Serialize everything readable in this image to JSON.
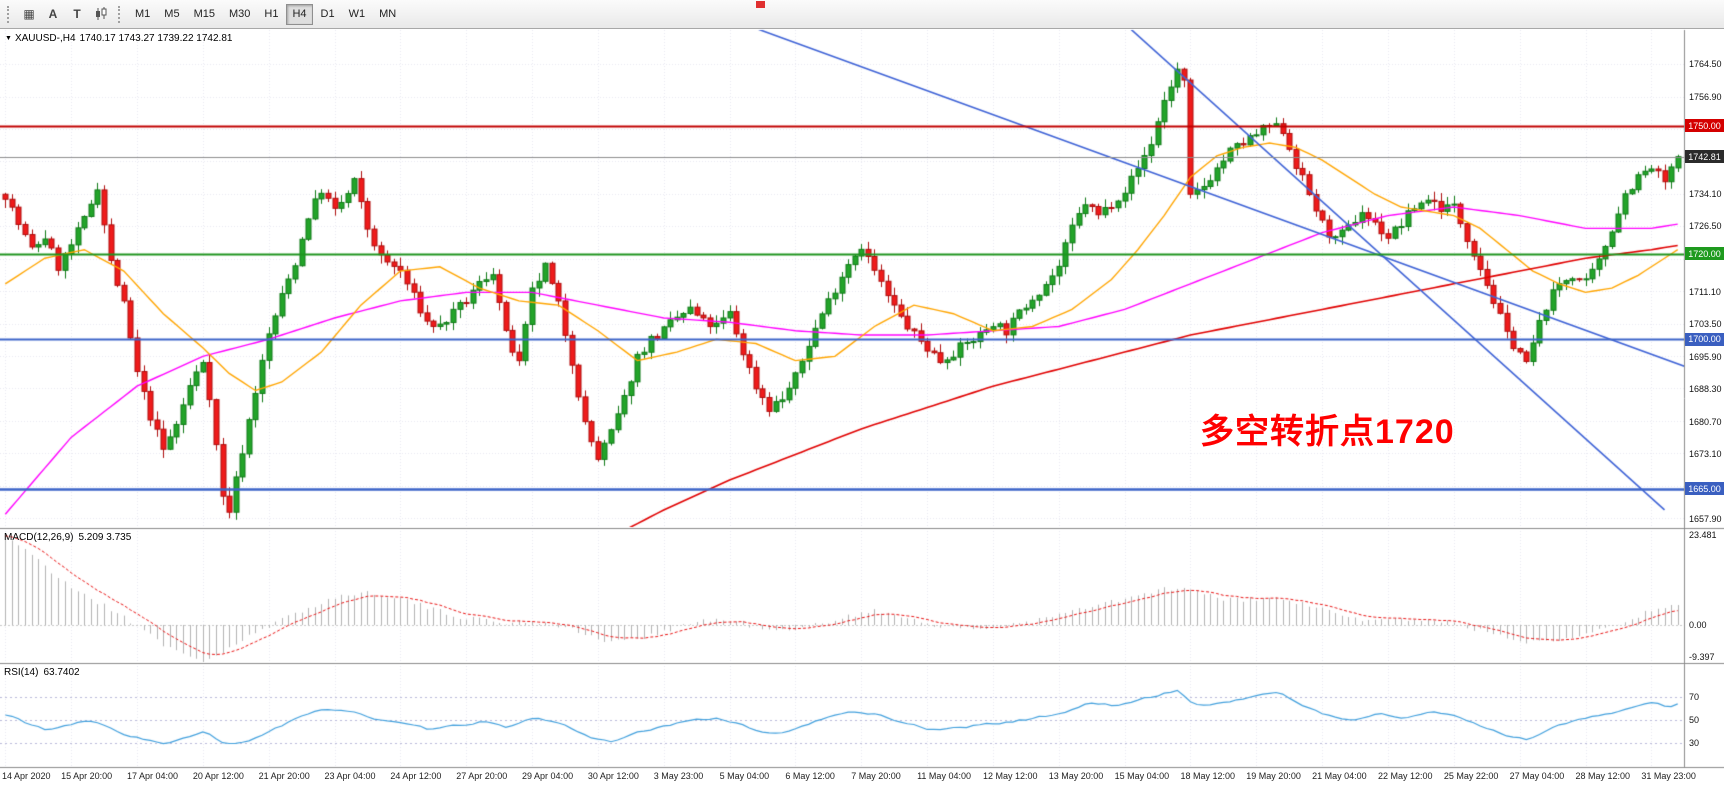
{
  "toolbar": {
    "icons": [
      {
        "name": "grid-icon",
        "glyph": "▦"
      },
      {
        "name": "text-a-icon",
        "glyph": "A"
      },
      {
        "name": "text-t-icon",
        "glyph": "T"
      },
      {
        "name": "candlestick-tool-icon",
        "glyph": ""
      }
    ],
    "timeframes": [
      "M1",
      "M5",
      "M15",
      "M30",
      "H1",
      "H4",
      "D1",
      "W1",
      "MN"
    ],
    "selected_timeframe": "H4"
  },
  "main_chart": {
    "collapse_glyph": "▼",
    "symbol": "XAUUSD-,H4",
    "ohlc_text": "1740.17 1743.27 1739.22 1742.81",
    "current_price": "1742.81",
    "current_price_color": "#2b2b2b",
    "annotation": {
      "text": "多空转折点1720",
      "color": "#ff0000"
    },
    "levels": [
      {
        "price": "1750.00",
        "color": "#d40000"
      },
      {
        "price": "1720.00",
        "color": "#1e9a1e"
      },
      {
        "price": "1700.00",
        "color": "#3a5fc0"
      },
      {
        "price": "1665.00",
        "color": "#3a5fc0"
      }
    ],
    "axis_ticks": [
      "1764.50",
      "1756.90",
      "1734.10",
      "1726.50",
      "1711.10",
      "1703.50",
      "1695.90",
      "1688.30",
      "1680.70",
      "1673.10",
      "1657.90"
    ]
  },
  "macd": {
    "name": "MACD(12,26,9)",
    "values_text": "5.209 3.735",
    "axis": [
      "23.481",
      "0.00",
      "-9.397"
    ]
  },
  "rsi": {
    "name": "RSI(14)",
    "value_text": "63.7402",
    "axis": [
      "70",
      "50",
      "30"
    ]
  },
  "time_axis": [
    "14 Apr 2020",
    "15 Apr 20:00",
    "17 Apr 04:00",
    "20 Apr 12:00",
    "21 Apr 20:00",
    "23 Apr 04:00",
    "24 Apr 12:00",
    "27 Apr 20:00",
    "29 Apr 04:00",
    "30 Apr 12:00",
    "3 May 23:00",
    "5 May 04:00",
    "6 May 12:00",
    "7 May 20:00",
    "11 May 04:00",
    "12 May 12:00",
    "13 May 20:00",
    "15 May 04:00",
    "18 May 12:00",
    "19 May 20:00",
    "21 May 04:00",
    "22 May 12:00",
    "25 May 22:00",
    "27 May 04:00",
    "28 May 12:00",
    "31 May 23:00"
  ],
  "chart_data": {
    "type": "candlestick+indicators",
    "symbol": "XAUUSD",
    "timeframe": "H4",
    "last_ohlc": {
      "open": 1740.17,
      "high": 1743.27,
      "low": 1739.22,
      "close": 1742.81
    },
    "price_axis_range": [
      1656.0,
      1772.5
    ],
    "candles_count": 255,
    "horizontal_levels": [
      {
        "value": 1750.0,
        "color": "#c00000",
        "width": 2
      },
      {
        "value": 1720.0,
        "color": "#1e941e",
        "width": 2
      },
      {
        "value": 1700.0,
        "color": "#3c64c8",
        "width": 2
      },
      {
        "value": 1665.0,
        "color": "#3c64c8",
        "width": 2.5
      }
    ],
    "trendlines": [
      [
        [
          112,
          1774
        ],
        [
          258,
          1692
        ]
      ],
      [
        [
          170,
          1774
        ],
        [
          252,
          1660
        ]
      ]
    ],
    "price_path_anchors": [
      [
        0,
        1734
      ],
      [
        2,
        1727
      ],
      [
        4,
        1721
      ],
      [
        6,
        1724
      ],
      [
        8,
        1717
      ],
      [
        10,
        1722
      ],
      [
        12,
        1728
      ],
      [
        14,
        1736
      ],
      [
        16,
        1718
      ],
      [
        18,
        1708
      ],
      [
        20,
        1692
      ],
      [
        22,
        1682
      ],
      [
        24,
        1674
      ],
      [
        26,
        1680
      ],
      [
        28,
        1689
      ],
      [
        30,
        1695
      ],
      [
        31,
        1687
      ],
      [
        33,
        1663
      ],
      [
        34,
        1660
      ],
      [
        36,
        1674
      ],
      [
        38,
        1688
      ],
      [
        40,
        1701
      ],
      [
        42,
        1710
      ],
      [
        44,
        1718
      ],
      [
        46,
        1729
      ],
      [
        48,
        1735
      ],
      [
        50,
        1730
      ],
      [
        52,
        1734
      ],
      [
        53,
        1737
      ],
      [
        55,
        1726
      ],
      [
        57,
        1719
      ],
      [
        60,
        1716
      ],
      [
        62,
        1710
      ],
      [
        64,
        1704
      ],
      [
        66,
        1703
      ],
      [
        68,
        1706
      ],
      [
        70,
        1709
      ],
      [
        72,
        1713
      ],
      [
        74,
        1716
      ],
      [
        76,
        1701
      ],
      [
        78,
        1694
      ],
      [
        80,
        1711
      ],
      [
        82,
        1717
      ],
      [
        84,
        1708
      ],
      [
        86,
        1695
      ],
      [
        88,
        1680
      ],
      [
        90,
        1672
      ],
      [
        92,
        1678
      ],
      [
        94,
        1686
      ],
      [
        96,
        1696
      ],
      [
        98,
        1700
      ],
      [
        100,
        1702
      ],
      [
        102,
        1705
      ],
      [
        104,
        1707
      ],
      [
        106,
        1704
      ],
      [
        108,
        1703
      ],
      [
        110,
        1706
      ],
      [
        112,
        1697
      ],
      [
        114,
        1689
      ],
      [
        116,
        1684
      ],
      [
        118,
        1686
      ],
      [
        120,
        1691
      ],
      [
        122,
        1699
      ],
      [
        124,
        1706
      ],
      [
        126,
        1712
      ],
      [
        128,
        1718
      ],
      [
        130,
        1722
      ],
      [
        132,
        1716
      ],
      [
        134,
        1710
      ],
      [
        136,
        1705
      ],
      [
        138,
        1701
      ],
      [
        140,
        1698
      ],
      [
        142,
        1695
      ],
      [
        144,
        1697
      ],
      [
        146,
        1699
      ],
      [
        148,
        1701
      ],
      [
        150,
        1704
      ],
      [
        152,
        1702
      ],
      [
        154,
        1706
      ],
      [
        156,
        1710
      ],
      [
        158,
        1713
      ],
      [
        160,
        1717
      ],
      [
        162,
        1726
      ],
      [
        164,
        1732
      ],
      [
        166,
        1729
      ],
      [
        168,
        1732
      ],
      [
        170,
        1735
      ],
      [
        172,
        1740
      ],
      [
        174,
        1746
      ],
      [
        176,
        1756
      ],
      [
        178,
        1763
      ],
      [
        179,
        1760
      ],
      [
        180,
        1733
      ],
      [
        182,
        1736
      ],
      [
        184,
        1740
      ],
      [
        186,
        1744
      ],
      [
        188,
        1746
      ],
      [
        190,
        1748
      ],
      [
        192,
        1750
      ],
      [
        194,
        1749
      ],
      [
        196,
        1741
      ],
      [
        198,
        1734
      ],
      [
        200,
        1727
      ],
      [
        202,
        1723
      ],
      [
        204,
        1726
      ],
      [
        206,
        1730
      ],
      [
        208,
        1727
      ],
      [
        210,
        1724
      ],
      [
        212,
        1727
      ],
      [
        214,
        1731
      ],
      [
        216,
        1733
      ],
      [
        218,
        1731
      ],
      [
        220,
        1731
      ],
      [
        222,
        1724
      ],
      [
        224,
        1717
      ],
      [
        226,
        1709
      ],
      [
        228,
        1701
      ],
      [
        230,
        1697
      ],
      [
        231,
        1694
      ],
      [
        232,
        1699
      ],
      [
        234,
        1708
      ],
      [
        236,
        1713
      ],
      [
        238,
        1715
      ],
      [
        240,
        1713
      ],
      [
        242,
        1718
      ],
      [
        244,
        1726
      ],
      [
        246,
        1734
      ],
      [
        248,
        1738
      ],
      [
        250,
        1740
      ],
      [
        252,
        1737
      ],
      [
        254,
        1742
      ]
    ],
    "ma_magenta_anchors": [
      [
        0,
        1659
      ],
      [
        10,
        1677
      ],
      [
        20,
        1689
      ],
      [
        30,
        1696
      ],
      [
        40,
        1700
      ],
      [
        50,
        1705
      ],
      [
        60,
        1709
      ],
      [
        70,
        1711
      ],
      [
        80,
        1711
      ],
      [
        90,
        1708
      ],
      [
        100,
        1705
      ],
      [
        110,
        1704
      ],
      [
        120,
        1702
      ],
      [
        130,
        1701
      ],
      [
        140,
        1701
      ],
      [
        150,
        1702
      ],
      [
        160,
        1703
      ],
      [
        170,
        1707
      ],
      [
        180,
        1713
      ],
      [
        190,
        1719
      ],
      [
        200,
        1725
      ],
      [
        210,
        1729
      ],
      [
        220,
        1731
      ],
      [
        230,
        1729
      ],
      [
        240,
        1726
      ],
      [
        250,
        1726
      ],
      [
        254,
        1727
      ]
    ],
    "ma_orange_anchors": [
      [
        0,
        1713
      ],
      [
        6,
        1719
      ],
      [
        12,
        1721
      ],
      [
        18,
        1716
      ],
      [
        24,
        1706
      ],
      [
        30,
        1698
      ],
      [
        34,
        1692
      ],
      [
        38,
        1688
      ],
      [
        42,
        1690
      ],
      [
        48,
        1697
      ],
      [
        54,
        1708
      ],
      [
        60,
        1716
      ],
      [
        66,
        1717
      ],
      [
        72,
        1712
      ],
      [
        78,
        1709
      ],
      [
        84,
        1708
      ],
      [
        90,
        1702
      ],
      [
        96,
        1695
      ],
      [
        102,
        1697
      ],
      [
        108,
        1700
      ],
      [
        114,
        1699
      ],
      [
        120,
        1695
      ],
      [
        126,
        1696
      ],
      [
        132,
        1703
      ],
      [
        138,
        1708
      ],
      [
        144,
        1706
      ],
      [
        150,
        1702
      ],
      [
        156,
        1703
      ],
      [
        162,
        1707
      ],
      [
        168,
        1714
      ],
      [
        172,
        1721
      ],
      [
        176,
        1729
      ],
      [
        180,
        1738
      ],
      [
        184,
        1743
      ],
      [
        188,
        1745
      ],
      [
        192,
        1746
      ],
      [
        196,
        1745
      ],
      [
        200,
        1742
      ],
      [
        204,
        1738
      ],
      [
        208,
        1734
      ],
      [
        212,
        1731
      ],
      [
        216,
        1730
      ],
      [
        220,
        1729
      ],
      [
        224,
        1726
      ],
      [
        228,
        1721
      ],
      [
        232,
        1716
      ],
      [
        236,
        1713
      ],
      [
        240,
        1711
      ],
      [
        244,
        1712
      ],
      [
        248,
        1715
      ],
      [
        252,
        1719
      ],
      [
        254,
        1721
      ]
    ],
    "ma_red_anchors": [
      [
        90,
        1652
      ],
      [
        100,
        1660
      ],
      [
        110,
        1667
      ],
      [
        120,
        1673
      ],
      [
        130,
        1679
      ],
      [
        140,
        1684
      ],
      [
        150,
        1689
      ],
      [
        160,
        1693
      ],
      [
        170,
        1697
      ],
      [
        180,
        1701
      ],
      [
        190,
        1704
      ],
      [
        200,
        1707
      ],
      [
        210,
        1710
      ],
      [
        220,
        1713
      ],
      [
        230,
        1716
      ],
      [
        240,
        1719
      ],
      [
        250,
        1721
      ],
      [
        254,
        1722
      ]
    ],
    "macd_anchors": [
      [
        0,
        23.3
      ],
      [
        3,
        20
      ],
      [
        6,
        15
      ],
      [
        9,
        11
      ],
      [
        12,
        8
      ],
      [
        15,
        5
      ],
      [
        18,
        2
      ],
      [
        21,
        -1
      ],
      [
        24,
        -5
      ],
      [
        27,
        -8
      ],
      [
        30,
        -9.4
      ],
      [
        33,
        -7
      ],
      [
        36,
        -4
      ],
      [
        40,
        -0.5
      ],
      [
        44,
        3
      ],
      [
        48,
        6
      ],
      [
        52,
        8
      ],
      [
        56,
        8.5
      ],
      [
        60,
        7
      ],
      [
        64,
        4.5
      ],
      [
        68,
        2.5
      ],
      [
        72,
        1.5
      ],
      [
        76,
        0.5
      ],
      [
        80,
        1
      ],
      [
        84,
        0
      ],
      [
        88,
        -2.5
      ],
      [
        92,
        -4.5
      ],
      [
        96,
        -3.5
      ],
      [
        100,
        -1.5
      ],
      [
        104,
        0.5
      ],
      [
        108,
        1.5
      ],
      [
        112,
        0.5
      ],
      [
        116,
        -1.5
      ],
      [
        120,
        -1.5
      ],
      [
        124,
        0.5
      ],
      [
        128,
        2.5
      ],
      [
        132,
        3.5
      ],
      [
        136,
        2.5
      ],
      [
        140,
        0.5
      ],
      [
        144,
        -1
      ],
      [
        148,
        -1
      ],
      [
        152,
        0
      ],
      [
        156,
        1
      ],
      [
        160,
        2.5
      ],
      [
        164,
        4.5
      ],
      [
        168,
        6
      ],
      [
        172,
        7.5
      ],
      [
        176,
        9.5
      ],
      [
        180,
        9
      ],
      [
        184,
        7
      ],
      [
        188,
        6.5
      ],
      [
        192,
        7
      ],
      [
        196,
        6
      ],
      [
        200,
        4
      ],
      [
        204,
        2
      ],
      [
        208,
        1
      ],
      [
        212,
        1.5
      ],
      [
        216,
        1.5
      ],
      [
        220,
        0.5
      ],
      [
        224,
        -1.5
      ],
      [
        228,
        -3.5
      ],
      [
        232,
        -4.5
      ],
      [
        236,
        -3.5
      ],
      [
        240,
        -2
      ],
      [
        244,
        0
      ],
      [
        248,
        2.5
      ],
      [
        252,
        4.5
      ],
      [
        254,
        5.2
      ]
    ],
    "macd_current": 5.209,
    "macd_signal_current": 3.735,
    "macd_axis_values": [
      23.481,
      0.0,
      -9.397
    ],
    "rsi_anchors": [
      [
        0,
        54
      ],
      [
        3,
        46
      ],
      [
        6,
        40
      ],
      [
        9,
        45
      ],
      [
        12,
        50
      ],
      [
        15,
        43
      ],
      [
        18,
        36
      ],
      [
        21,
        32
      ],
      [
        24,
        28
      ],
      [
        27,
        35
      ],
      [
        30,
        40
      ],
      [
        33,
        26
      ],
      [
        36,
        31
      ],
      [
        40,
        42
      ],
      [
        44,
        52
      ],
      [
        48,
        60
      ],
      [
        52,
        58
      ],
      [
        56,
        49
      ],
      [
        60,
        46
      ],
      [
        64,
        41
      ],
      [
        68,
        45
      ],
      [
        72,
        49
      ],
      [
        76,
        42
      ],
      [
        80,
        53
      ],
      [
        84,
        46
      ],
      [
        88,
        34
      ],
      [
        92,
        31
      ],
      [
        96,
        40
      ],
      [
        100,
        45
      ],
      [
        104,
        50
      ],
      [
        108,
        52
      ],
      [
        112,
        43
      ],
      [
        116,
        37
      ],
      [
        120,
        43
      ],
      [
        124,
        52
      ],
      [
        128,
        58
      ],
      [
        132,
        54
      ],
      [
        136,
        47
      ],
      [
        140,
        41
      ],
      [
        144,
        43
      ],
      [
        148,
        46
      ],
      [
        152,
        48
      ],
      [
        156,
        52
      ],
      [
        160,
        56
      ],
      [
        164,
        65
      ],
      [
        168,
        62
      ],
      [
        172,
        68
      ],
      [
        176,
        74
      ],
      [
        178,
        76
      ],
      [
        180,
        61
      ],
      [
        183,
        63
      ],
      [
        186,
        67
      ],
      [
        190,
        72
      ],
      [
        193,
        74
      ],
      [
        196,
        63
      ],
      [
        200,
        53
      ],
      [
        204,
        49
      ],
      [
        208,
        56
      ],
      [
        212,
        51
      ],
      [
        216,
        57
      ],
      [
        220,
        53
      ],
      [
        224,
        43
      ],
      [
        228,
        35
      ],
      [
        231,
        32
      ],
      [
        234,
        44
      ],
      [
        238,
        50
      ],
      [
        242,
        54
      ],
      [
        246,
        60
      ],
      [
        250,
        65
      ],
      [
        252,
        61
      ],
      [
        254,
        63.7
      ]
    ],
    "rsi_current": 63.7402,
    "rsi_levels": [
      70,
      50,
      30
    ],
    "colors": {
      "up_fill": "#23a42a",
      "up_stroke": "#0f7a16",
      "down_fill": "#ef1b1b",
      "down_stroke": "#ae0d0d",
      "ma_magenta": "#ff00ff",
      "ma_orange": "#ffa500",
      "ma_red": "#e00000",
      "trendline": "#3f63d6",
      "rsi": "#42a0dd",
      "macd_hist": "#b2b2b2",
      "macd_signal": "#e81414"
    }
  }
}
